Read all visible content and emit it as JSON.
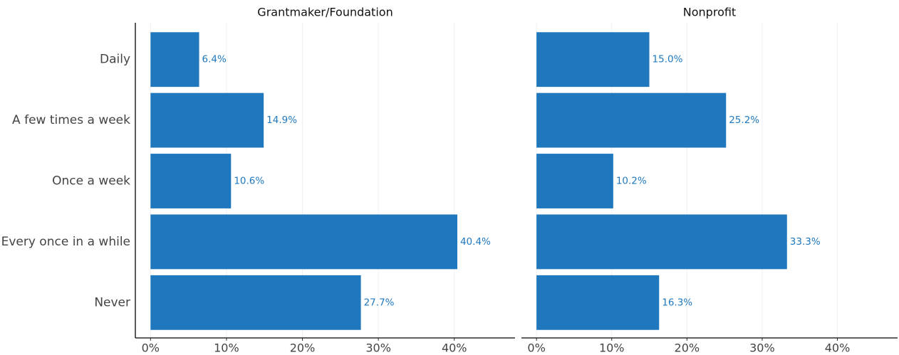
{
  "chart_data": [
    {
      "type": "bar",
      "title": "Grantmaker/Foundation",
      "categories": [
        "Daily",
        "A few times a week",
        "Once a week",
        "Every once in a while",
        "Never"
      ],
      "values": [
        6.4,
        14.9,
        10.6,
        40.4,
        27.7
      ],
      "value_labels": [
        "6.4%",
        "14.9%",
        "10.6%",
        "40.4%",
        "27.7%"
      ],
      "color": "#1f78be",
      "xlim": [
        -2,
        48
      ],
      "xticks": [
        {
          "value": 0,
          "label": "0%"
        },
        {
          "value": 10,
          "label": "10%"
        },
        {
          "value": 20,
          "label": "20%"
        },
        {
          "value": 30,
          "label": "30%"
        },
        {
          "value": 40,
          "label": "40%"
        }
      ],
      "grid": true
    },
    {
      "type": "bar",
      "title": "Nonprofit",
      "values": [
        15.0,
        25.2,
        10.2,
        33.3,
        16.3
      ],
      "value_labels": [
        "15.0%",
        "25.2%",
        "10.2%",
        "33.3%",
        "16.3%"
      ],
      "color": "#1f78be",
      "xlim": [
        -2,
        48
      ],
      "xticks": [
        {
          "value": 0,
          "label": "0%"
        },
        {
          "value": 10,
          "label": "10%"
        },
        {
          "value": 20,
          "label": "20%"
        },
        {
          "value": 30,
          "label": "30%"
        },
        {
          "value": 40,
          "label": "40%"
        }
      ],
      "grid": true
    }
  ]
}
